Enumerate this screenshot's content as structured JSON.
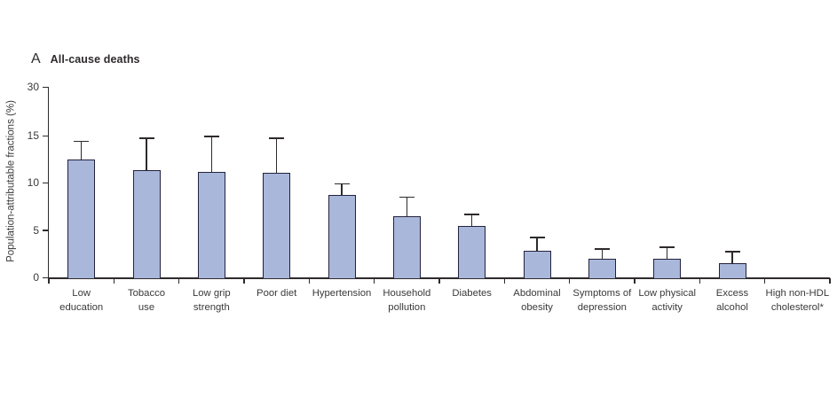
{
  "panel": {
    "label": "A",
    "title": "All-cause deaths"
  },
  "chart_data": {
    "type": "bar",
    "title": "All-cause deaths",
    "xlabel": "",
    "ylabel": "Population-attributable fractions (%)",
    "yaxis_ticks": [
      0,
      5,
      10,
      15,
      30
    ],
    "ylim": [
      0,
      30
    ],
    "axis_note": "y-axis non-linear: segment 15-30 compressed relative to 0-15",
    "grid": false,
    "legend": "none",
    "categories": [
      "Low education",
      "Tobacco use",
      "Low grip strength",
      "Poor diet",
      "Hypertension",
      "Household pollution",
      "Diabetes",
      "Abdominal obesity",
      "Symptoms of depression",
      "Low physical activity",
      "Excess alcohol",
      "High non-HDL cholesterol*"
    ],
    "category_label_lines": [
      [
        "Low",
        "education"
      ],
      [
        "Tobacco",
        "use"
      ],
      [
        "Low grip",
        "strength"
      ],
      [
        "Poor diet"
      ],
      [
        "Hypertension"
      ],
      [
        "Household",
        "pollution"
      ],
      [
        "Diabetes"
      ],
      [
        "Abdominal",
        "obesity"
      ],
      [
        "Symptoms of",
        "depression"
      ],
      [
        "Low physical",
        "activity"
      ],
      [
        "Excess",
        "alcohol"
      ],
      [
        "High non-HDL",
        "cholesterol*"
      ]
    ],
    "values": [
      12.5,
      11.3,
      11.2,
      11.1,
      8.7,
      6.5,
      5.4,
      2.8,
      2.0,
      2.0,
      1.5,
      null
    ],
    "ci_upper": [
      14.4,
      14.7,
      14.9,
      14.7,
      9.9,
      8.5,
      6.7,
      4.2,
      3.0,
      3.2,
      2.7,
      null
    ],
    "colors": {
      "bar_fill": "#a9b7db",
      "bar_border": "#23223c",
      "axis": "#2e2a2b",
      "text": "#3a393b"
    }
  }
}
